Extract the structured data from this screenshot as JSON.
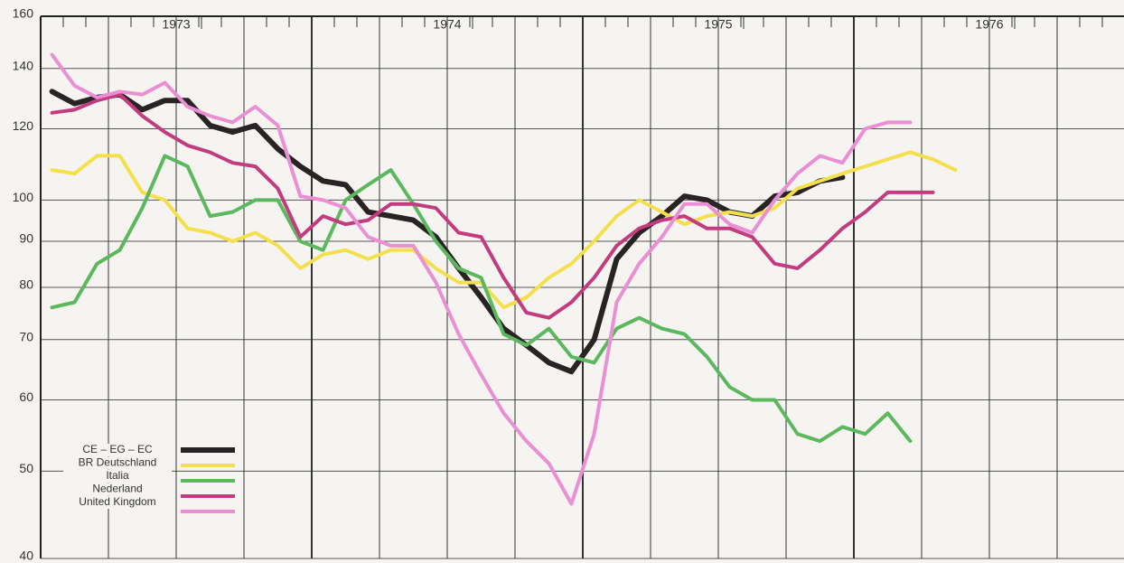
{
  "chart_data": {
    "type": "line",
    "x": [
      1973.042,
      1973.125,
      1973.208,
      1973.292,
      1973.375,
      1973.458,
      1973.542,
      1973.625,
      1973.708,
      1973.792,
      1973.875,
      1973.958,
      1974.042,
      1974.125,
      1974.208,
      1974.292,
      1974.375,
      1974.458,
      1974.542,
      1974.625,
      1974.708,
      1974.792,
      1974.875,
      1974.958,
      1975.042,
      1975.125,
      1975.208,
      1975.292,
      1975.375,
      1975.458,
      1975.542,
      1975.625,
      1975.708,
      1975.792,
      1975.875,
      1975.958,
      1976.042,
      1976.125,
      1976.208,
      1976.292,
      1976.375
    ],
    "xlim": [
      1973,
      1977
    ],
    "xticks": [
      {
        "value": 1973.5,
        "label": "1973"
      },
      {
        "value": 1974.5,
        "label": "1974"
      },
      {
        "value": 1975.5,
        "label": "1975"
      },
      {
        "value": 1976.5,
        "label": "1976"
      }
    ],
    "ylim": [
      40,
      160
    ],
    "yticks": [
      40,
      50,
      60,
      70,
      80,
      90,
      100,
      120,
      140,
      160
    ],
    "log_scale_y": true,
    "grid": true,
    "legend": "lower left",
    "series": [
      {
        "name": "CE – EG – EC",
        "color": "#2a2326",
        "width": 6,
        "values": [
          132,
          128,
          130,
          131,
          126,
          129,
          129,
          121,
          119,
          121,
          114,
          109,
          105,
          104,
          97,
          96,
          95,
          91,
          84,
          78,
          72,
          69,
          66,
          64.5,
          70,
          86,
          92,
          96,
          101,
          100,
          97,
          96,
          101,
          102,
          105,
          106,
          null,
          null,
          null,
          null,
          null
        ]
      },
      {
        "name": "BR Deutschland",
        "color": "#f3e04c",
        "width": 4,
        "values": [
          108,
          107,
          112,
          112,
          102,
          100,
          93,
          92,
          90,
          92,
          89,
          84,
          87,
          88,
          86,
          88,
          88,
          84,
          81,
          81,
          76,
          78,
          82,
          85,
          90,
          96,
          100,
          97,
          94,
          96,
          97,
          96,
          98,
          103,
          105,
          107,
          109,
          111,
          113,
          111,
          108
        ]
      },
      {
        "name": "Italia",
        "color": "#5cb85e",
        "width": 4,
        "values": [
          76,
          77,
          85,
          88,
          98,
          112,
          109,
          96,
          97,
          100,
          100,
          90,
          88,
          100,
          104,
          108,
          99,
          90,
          84,
          82,
          71,
          69,
          72,
          67,
          66,
          72,
          74,
          72,
          71,
          67,
          62,
          60,
          60,
          55,
          54,
          56,
          55,
          58,
          54,
          null,
          null
        ]
      },
      {
        "name": "Nederland",
        "color": "#c23c7f",
        "width": 4,
        "values": [
          125,
          126,
          129,
          131,
          124,
          119,
          115,
          113,
          110,
          109,
          103,
          91,
          96,
          94,
          95,
          99,
          99,
          98,
          92,
          91,
          82,
          75,
          74,
          77,
          82,
          89,
          93,
          95,
          96,
          93,
          93,
          91,
          85,
          84,
          88,
          93,
          97,
          102,
          102,
          102,
          null
        ]
      },
      {
        "name": "United Kingdom",
        "color": "#ea8fd4",
        "width": 4,
        "values": [
          145,
          134,
          130,
          132,
          131,
          135,
          127,
          124,
          122,
          127,
          121,
          101,
          100,
          98,
          91,
          89,
          89,
          81,
          71,
          64,
          58,
          54,
          51,
          46,
          55,
          77,
          85,
          91,
          99,
          99,
          94,
          92,
          100,
          107,
          112,
          110,
          120,
          122,
          122,
          null,
          null
        ]
      }
    ]
  }
}
